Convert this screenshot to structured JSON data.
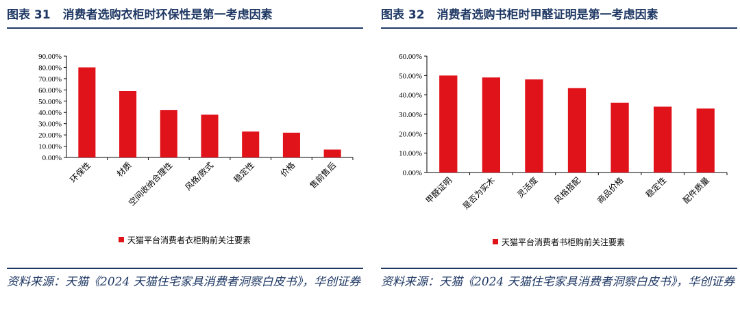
{
  "charts": [
    {
      "figure_label": "图表 31",
      "figure_title": "消费者选购衣柜时环保性是第一考虑因素",
      "source": "资料来源：天猫《2024 天猫住宅家具消费者洞察白皮书》，华创证券",
      "chart_data": {
        "type": "bar",
        "categories": [
          "环保性",
          "材质",
          "空间收纳合理性",
          "风格/款式",
          "稳定性",
          "价格",
          "售前售后"
        ],
        "series": [
          {
            "name": "天猫平台消费者衣柜购前关注要素",
            "values": [
              0.8,
              0.59,
              0.42,
              0.38,
              0.23,
              0.22,
              0.07
            ]
          }
        ],
        "ylim": [
          0,
          0.9
        ],
        "yticks": [
          "0.00%",
          "10.00%",
          "20.00%",
          "30.00%",
          "40.00%",
          "50.00%",
          "60.00%",
          "70.00%",
          "80.00%",
          "90.00%"
        ],
        "legend_position": "bottom",
        "bar_color": "#e0131b",
        "grid": false
      }
    },
    {
      "figure_label": "图表 32",
      "figure_title": "消费者选购书柜时甲醛证明是第一考虑因素",
      "source": "资料来源：天猫《2024 天猫住宅家具消费者洞察白皮书》，华创证券",
      "chart_data": {
        "type": "bar",
        "categories": [
          "甲醛证明",
          "是否为实木",
          "灵活度",
          "风格搭配",
          "商品价格",
          "稳定性",
          "配件质量"
        ],
        "series": [
          {
            "name": "天猫平台消费者书柜购前关注要素",
            "values": [
              0.5,
              0.49,
              0.48,
              0.435,
              0.36,
              0.34,
              0.33
            ]
          }
        ],
        "ylim": [
          0,
          0.6
        ],
        "yticks": [
          "0.00%",
          "10.00%",
          "20.00%",
          "30.00%",
          "40.00%",
          "50.00%",
          "60.00%"
        ],
        "legend_position": "bottom",
        "bar_color": "#e0131b",
        "grid": false
      }
    }
  ]
}
